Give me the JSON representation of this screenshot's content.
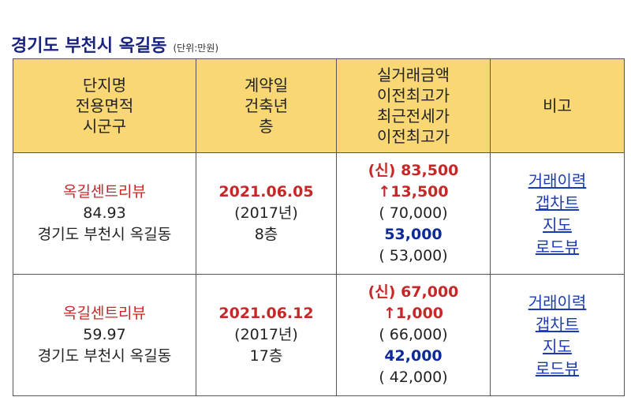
{
  "title": "경기도 부천시 옥길동",
  "unit": "(단위:만원)",
  "headers": {
    "col1": [
      "단지명",
      "전용면적",
      "시군구"
    ],
    "col2": [
      "계약일",
      "건축년",
      "층"
    ],
    "col3": [
      "실거래금액",
      "이전최고가",
      "최근전세가",
      "이전최고가"
    ],
    "col4": [
      "비고"
    ]
  },
  "rows": [
    {
      "complex": "옥길센트리뷰",
      "area": "84.93",
      "region": "경기도 부천시 옥길동",
      "date": "2021.06.05",
      "built": "(2017년)",
      "floor": "8층",
      "price": "(신) 83,500",
      "diff": "↑13,500",
      "prev_high": "( 70,000)",
      "jeonse": "53,000",
      "jeonse_prev_high": "( 53,000)",
      "links": [
        "거래이력",
        "갭차트",
        "지도",
        "로드뷰"
      ]
    },
    {
      "complex": "옥길센트리뷰",
      "area": "59.97",
      "region": "경기도 부천시 옥길동",
      "date": "2021.06.12",
      "built": "(2017년)",
      "floor": "17층",
      "price": "(신) 67,000",
      "diff": "↑1,000",
      "prev_high": "( 66,000)",
      "jeonse": "42,000",
      "jeonse_prev_high": "( 42,000)",
      "links": [
        "거래이력",
        "갭차트",
        "지도",
        "로드뷰"
      ]
    }
  ]
}
